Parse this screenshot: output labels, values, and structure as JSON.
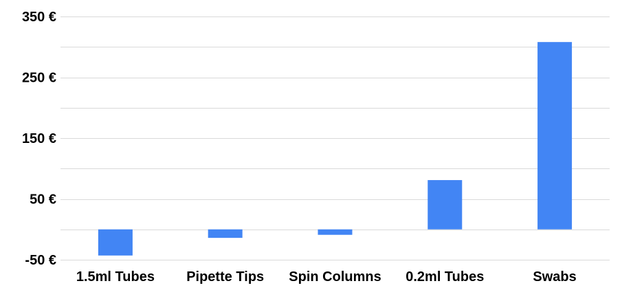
{
  "chart_data": {
    "type": "bar",
    "categories": [
      "1.5ml Tubes",
      "Pipette Tips",
      "Spin Columns",
      "0.2ml Tubes",
      "Swabs"
    ],
    "values": [
      -43,
      -14,
      -9,
      81,
      308
    ],
    "ylim": [
      -50,
      350
    ],
    "yticks": [
      -50,
      50,
      150,
      250,
      350
    ],
    "ytick_labels": [
      "-50 €",
      "50 €",
      "150 €",
      "250 €",
      "350 €"
    ],
    "title": "",
    "xlabel": "",
    "ylabel": "",
    "grid": true,
    "legend": "none",
    "colors": {
      "bar": "#4285f4",
      "grid": "#d9d9d9"
    }
  }
}
